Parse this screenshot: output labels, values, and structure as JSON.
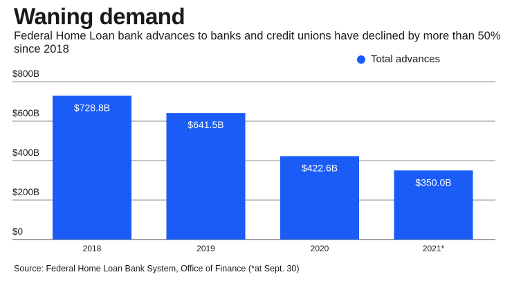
{
  "header": {
    "title": "Waning demand",
    "subtitle": "Federal Home Loan bank advances to banks and credit unions have declined by more than 50% since 2018"
  },
  "legend": {
    "label": "Total advances",
    "color": "#1a5cf5"
  },
  "footer": {
    "source": "Source: Federal Home Loan Bank System, Office of Finance (*at Sept. 30)"
  },
  "chart_data": {
    "type": "bar",
    "title": "Waning demand",
    "subtitle": "Federal Home Loan bank advances to banks and credit unions have declined by more than 50% since 2018",
    "categories": [
      "2018",
      "2019",
      "2020",
      "2021*"
    ],
    "series": [
      {
        "name": "Total advances",
        "values": [
          728.8,
          641.5,
          422.6,
          350.0
        ],
        "color": "#1a5cf5"
      }
    ],
    "data_labels": [
      "$728.8B",
      "$641.5B",
      "$422.6B",
      "$350.0B"
    ],
    "y_ticks": [
      0,
      200,
      400,
      600,
      800
    ],
    "y_tick_labels": [
      "$0",
      "$200B",
      "$400B",
      "$600B",
      "$800B"
    ],
    "ylim": [
      0,
      800
    ],
    "xlabel": "",
    "ylabel": "",
    "grid": true,
    "legend_position": "top-right"
  }
}
